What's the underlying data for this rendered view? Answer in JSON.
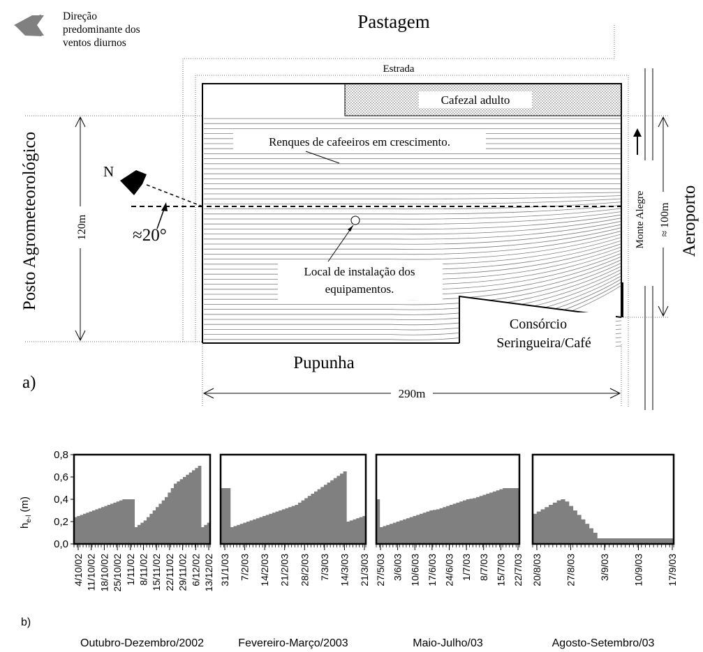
{
  "diagram": {
    "wind_legend": [
      "Direção",
      "predominante dos",
      "ventos diurnos"
    ],
    "top_label": "Pastagem",
    "road_label": "Estrada",
    "coffee_adult_label": "Cafezal adulto",
    "rows_label": "Renques de cafeeiros em crescimento.",
    "north_label": "N",
    "angle_label": "≈20°",
    "dim_120": "120m",
    "install_label_1": "Local de instalação dos",
    "install_label_2": "equipamentos.",
    "monte_alegre": "Monte Alegre",
    "dim_100": "≈ 100m",
    "airport": "Aeroporto",
    "station": "Posto Agrometeorológico",
    "consortium_1": "Consórcio",
    "consortium_2": "Seringueira/Café",
    "bottom_label": "Pupunha",
    "dim_290": "290m",
    "panel_a": "a)"
  },
  "chart_panel": {
    "panel_b": "b)",
    "ylabel_main": "h",
    "ylabel_sub": "e-l",
    "ylabel_unit": "(m)",
    "yticks": [
      "0,0",
      "0,2",
      "0,4",
      "0,6",
      "0,8"
    ]
  },
  "chart_data": [
    {
      "type": "area",
      "period": "Outubro-Dezembro/2002",
      "xticks": [
        "4/10/02",
        "11/10/02",
        "18/10/02",
        "25/10/02",
        "1/11/02",
        "8/11/02",
        "15/11/02",
        "22/11/02",
        "29/11/02",
        "6/12/02",
        "13/12/02"
      ],
      "ylim": [
        0,
        0.8
      ],
      "values": [
        0.24,
        0.25,
        0.26,
        0.27,
        0.28,
        0.29,
        0.3,
        0.31,
        0.32,
        0.33,
        0.34,
        0.35,
        0.36,
        0.37,
        0.38,
        0.39,
        0.4,
        0.4,
        0.4,
        0.4,
        0.15,
        0.17,
        0.19,
        0.21,
        0.24,
        0.27,
        0.3,
        0.33,
        0.36,
        0.39,
        0.42,
        0.46,
        0.5,
        0.54,
        0.56,
        0.58,
        0.6,
        0.62,
        0.64,
        0.66,
        0.68,
        0.7,
        0.15,
        0.17,
        0.19
      ]
    },
    {
      "type": "area",
      "period": "Fevereiro-Março/2003",
      "xticks": [
        "31/1/03",
        "7/2/03",
        "14/2/03",
        "21/2/03",
        "28/2/03",
        "7/3/03",
        "14/3/03",
        "21/3/03"
      ],
      "ylim": [
        0,
        0.8
      ],
      "values": [
        0.5,
        0.5,
        0.5,
        0.15,
        0.16,
        0.17,
        0.18,
        0.19,
        0.2,
        0.21,
        0.22,
        0.23,
        0.24,
        0.25,
        0.26,
        0.27,
        0.28,
        0.29,
        0.3,
        0.31,
        0.32,
        0.33,
        0.34,
        0.35,
        0.37,
        0.39,
        0.41,
        0.43,
        0.45,
        0.47,
        0.49,
        0.51,
        0.53,
        0.55,
        0.57,
        0.59,
        0.61,
        0.63,
        0.65,
        0.2,
        0.21,
        0.22,
        0.23,
        0.24,
        0.25
      ]
    },
    {
      "type": "area",
      "period": "Maio-Julho/03",
      "xticks": [
        "27/5/03",
        "3/6/03",
        "10/6/03",
        "17/6/03",
        "24/6/03",
        "1/7/03",
        "8/7/03",
        "15/7/03",
        "22/7/03"
      ],
      "ylim": [
        0,
        0.8
      ],
      "values": [
        0.4,
        0.15,
        0.16,
        0.17,
        0.18,
        0.19,
        0.2,
        0.21,
        0.22,
        0.23,
        0.24,
        0.25,
        0.26,
        0.27,
        0.28,
        0.29,
        0.3,
        0.305,
        0.31,
        0.32,
        0.33,
        0.34,
        0.35,
        0.36,
        0.37,
        0.38,
        0.39,
        0.4,
        0.405,
        0.41,
        0.42,
        0.43,
        0.44,
        0.45,
        0.46,
        0.47,
        0.48,
        0.49,
        0.5,
        0.5,
        0.5,
        0.5,
        0.5
      ]
    },
    {
      "type": "area",
      "period": "Agosto-Setembro/03",
      "xticks": [
        "20/8/03",
        "27/8/03",
        "3/9/03",
        "10/9/03",
        "17/9/03"
      ],
      "ylim": [
        0,
        0.8
      ],
      "values": [
        0.27,
        0.29,
        0.31,
        0.33,
        0.35,
        0.37,
        0.39,
        0.4,
        0.38,
        0.34,
        0.3,
        0.26,
        0.22,
        0.18,
        0.14,
        0.1,
        0.05,
        0.05,
        0.05,
        0.05,
        0.05,
        0.05,
        0.05,
        0.05,
        0.05,
        0.05,
        0.05,
        0.05,
        0.05,
        0.05,
        0.05,
        0.05,
        0.05,
        0.05,
        0.05
      ]
    }
  ]
}
